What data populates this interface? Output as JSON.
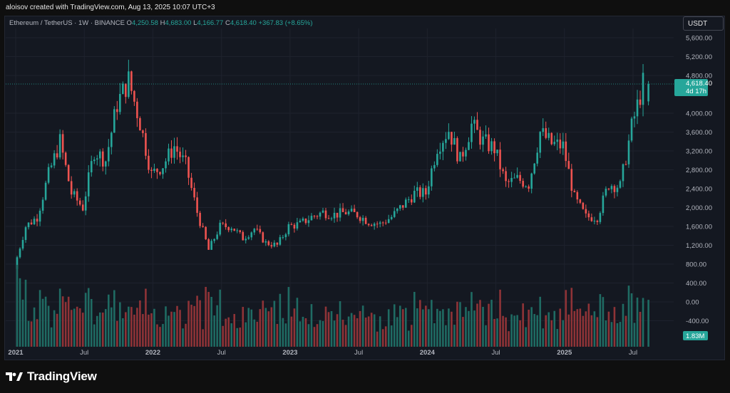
{
  "credit": "aloisov created with TradingView.com, Aug 13, 2025 10:07 UTC+3",
  "legend": {
    "symbol": "Ethereum / TetherUS · 1W · BINANCE",
    "o_label": "O",
    "o_value": "4,250.58",
    "h_label": "H",
    "h_value": "4,683.00",
    "l_label": "L",
    "l_value": "4,166.77",
    "c_label": "C",
    "c_value": "4,618.40",
    "change": "+367.83 (+8.65%)"
  },
  "currency_button": "USDT",
  "price_badge": {
    "price": "4,618.40",
    "countdown": "4d 17h"
  },
  "volume_badge": "1.83M",
  "footer_logo_text": "TradingView",
  "colors": {
    "up": "#26a69a",
    "down": "#ef5350",
    "vol_up": "#1f6b63",
    "vol_down": "#8f3337",
    "price_line": "#26a69a"
  },
  "chart_data": {
    "type": "candlestick",
    "y_axis_ticks": [
      "5,600.00",
      "5,200.00",
      "4,800.00",
      "4,000.00",
      "3,600.00",
      "3,200.00",
      "2,800.00",
      "2,400.00",
      "2,000.00",
      "1,600.00",
      "1,200.00",
      "800.00",
      "400.00",
      "0.00",
      "-400.00"
    ],
    "x_axis_ticks": [
      "2021",
      "Jul",
      "2022",
      "Jul",
      "2023",
      "Jul",
      "2024",
      "Jul",
      "2025",
      "Jul"
    ],
    "last_price": 4618.4,
    "weekly_closes_approx": [
      {
        "x": "2021-01",
        "y": 730
      },
      {
        "x": "2021-02",
        "y": 1600
      },
      {
        "x": "2021-03",
        "y": 1800
      },
      {
        "x": "2021-04",
        "y": 2700
      },
      {
        "x": "2021-05",
        "y": 3400
      },
      {
        "x": "2021-06",
        "y": 2300
      },
      {
        "x": "2021-07",
        "y": 2000
      },
      {
        "x": "2021-08",
        "y": 3200
      },
      {
        "x": "2021-09",
        "y": 3000
      },
      {
        "x": "2021-10",
        "y": 4200
      },
      {
        "x": "2021-11",
        "y": 4700
      },
      {
        "x": "2021-12",
        "y": 3800
      },
      {
        "x": "2022-01",
        "y": 2700
      },
      {
        "x": "2022-02",
        "y": 2900
      },
      {
        "x": "2022-03",
        "y": 3300
      },
      {
        "x": "2022-04",
        "y": 2900
      },
      {
        "x": "2022-05",
        "y": 1900
      },
      {
        "x": "2022-06",
        "y": 1100
      },
      {
        "x": "2022-07",
        "y": 1600
      },
      {
        "x": "2022-08",
        "y": 1600
      },
      {
        "x": "2022-09",
        "y": 1350
      },
      {
        "x": "2022-10",
        "y": 1550
      },
      {
        "x": "2022-11",
        "y": 1250
      },
      {
        "x": "2022-12",
        "y": 1200
      },
      {
        "x": "2023-01",
        "y": 1600
      },
      {
        "x": "2023-02",
        "y": 1650
      },
      {
        "x": "2023-03",
        "y": 1800
      },
      {
        "x": "2023-04",
        "y": 1900
      },
      {
        "x": "2023-05",
        "y": 1850
      },
      {
        "x": "2023-06",
        "y": 1900
      },
      {
        "x": "2023-07",
        "y": 1850
      },
      {
        "x": "2023-08",
        "y": 1700
      },
      {
        "x": "2023-09",
        "y": 1650
      },
      {
        "x": "2023-10",
        "y": 1800
      },
      {
        "x": "2023-11",
        "y": 2050
      },
      {
        "x": "2023-12",
        "y": 2300
      },
      {
        "x": "2024-01",
        "y": 2300
      },
      {
        "x": "2024-02",
        "y": 3300
      },
      {
        "x": "2024-03",
        "y": 3650
      },
      {
        "x": "2024-04",
        "y": 3000
      },
      {
        "x": "2024-05",
        "y": 3750
      },
      {
        "x": "2024-06",
        "y": 3400
      },
      {
        "x": "2024-07",
        "y": 3250
      },
      {
        "x": "2024-08",
        "y": 2500
      },
      {
        "x": "2024-09",
        "y": 2600
      },
      {
        "x": "2024-10",
        "y": 2500
      },
      {
        "x": "2024-11",
        "y": 3600
      },
      {
        "x": "2024-12",
        "y": 3350
      },
      {
        "x": "2025-01",
        "y": 3300
      },
      {
        "x": "2025-02",
        "y": 2200
      },
      {
        "x": "2025-03",
        "y": 1800
      },
      {
        "x": "2025-04",
        "y": 1800
      },
      {
        "x": "2025-05",
        "y": 2500
      },
      {
        "x": "2025-06",
        "y": 2450
      },
      {
        "x": "2025-07",
        "y": 3700
      },
      {
        "x": "2025-08",
        "y": 4618
      }
    ]
  }
}
